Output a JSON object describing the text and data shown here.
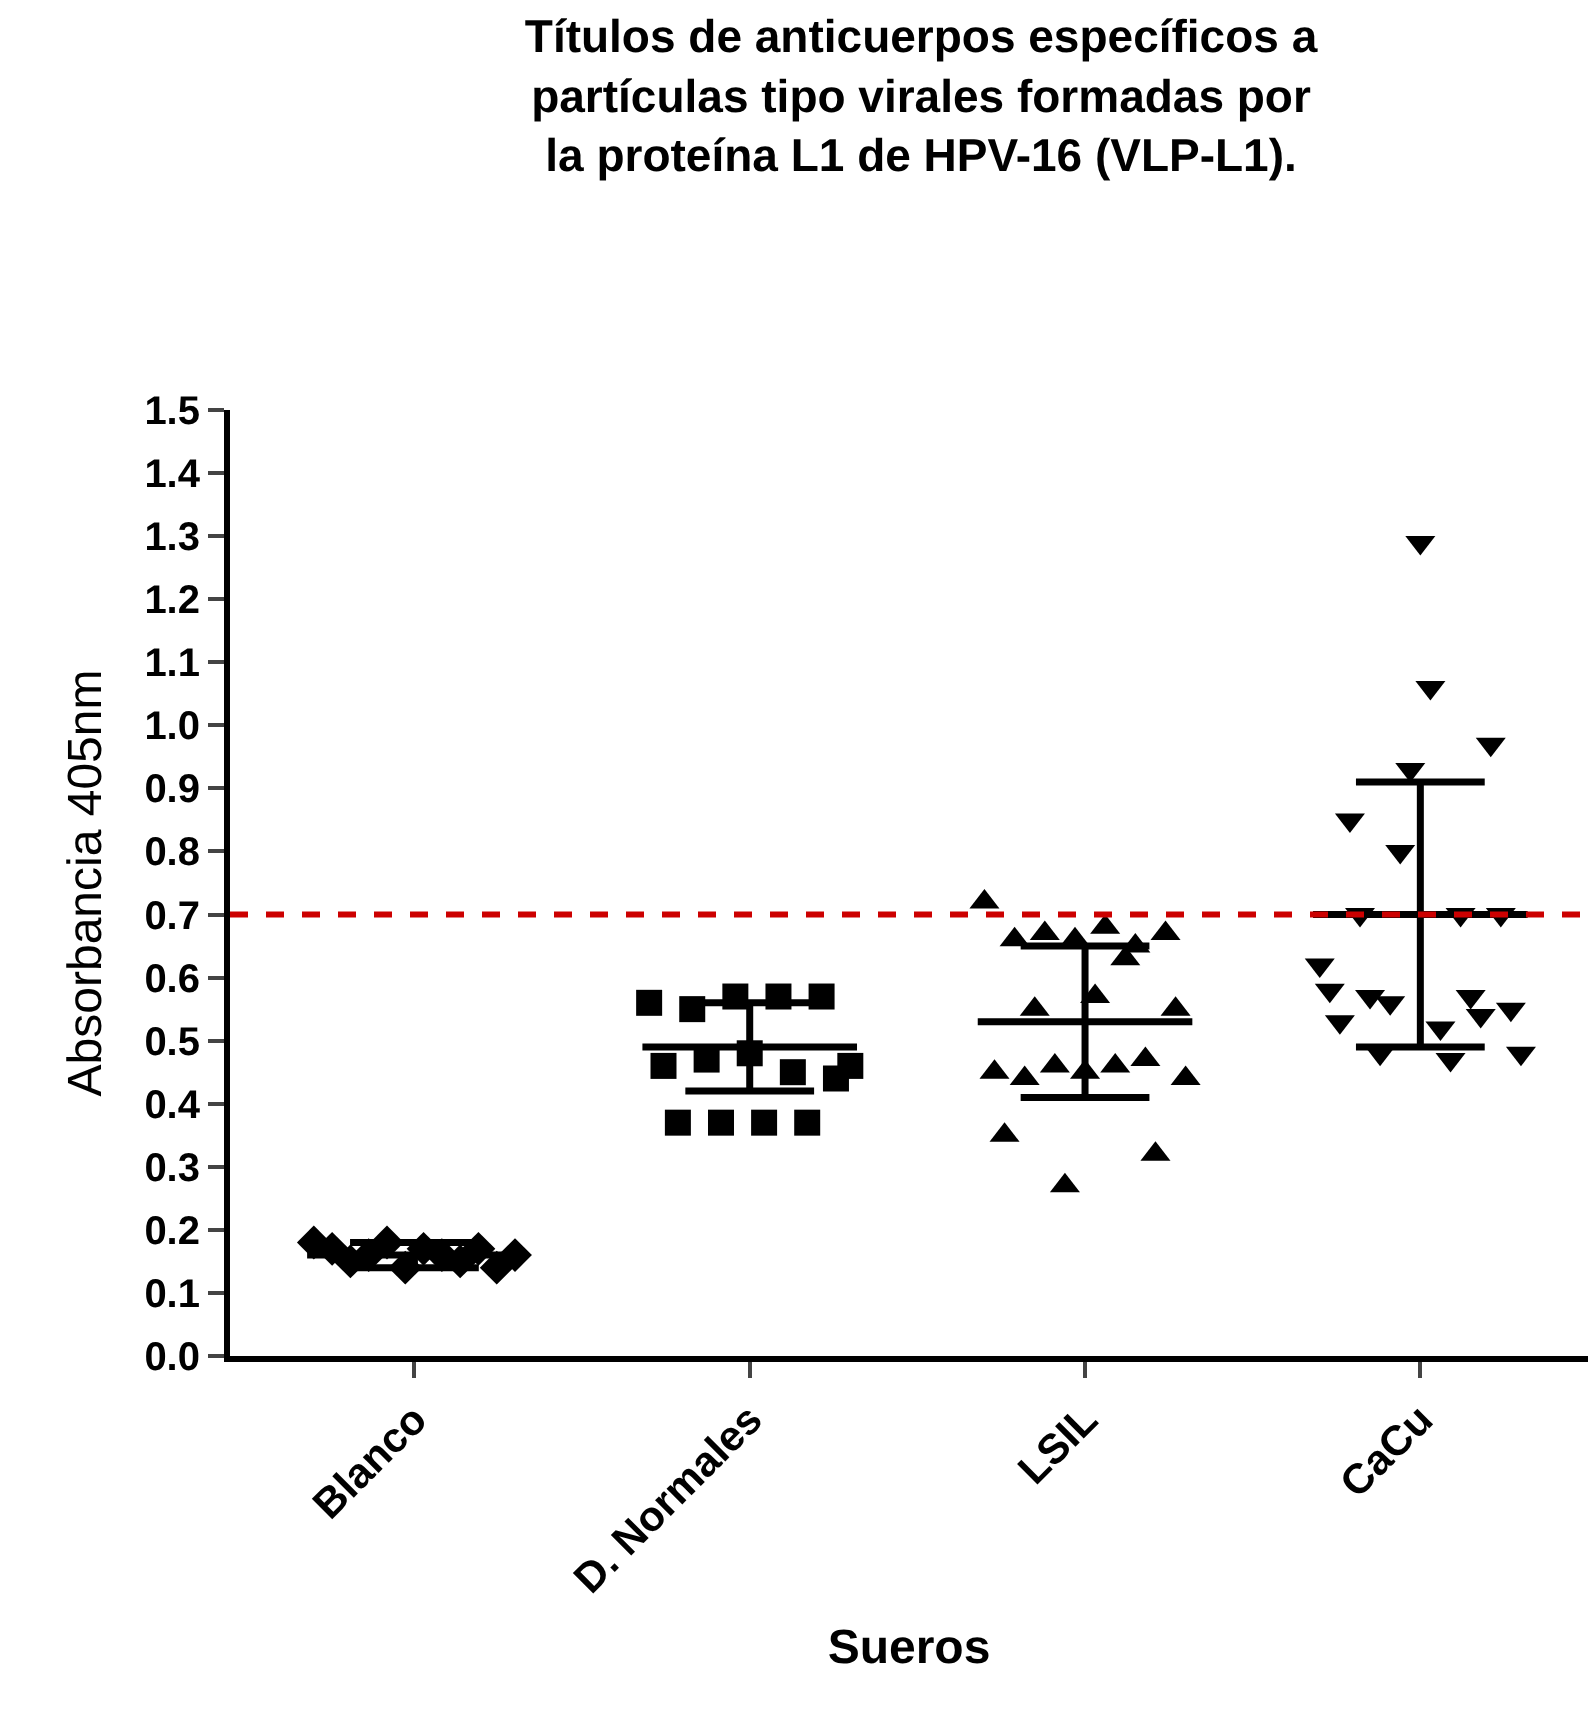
{
  "chart_data": {
    "type": "scatter",
    "title": "Títulos de anticuerpos específicos a partículas tipo virales formadas por la proteína L1 de HPV-16 (VLP-L1).",
    "xlabel": "Sueros",
    "ylabel": "Absorbancia 405nm",
    "categories": [
      "Blanco",
      "D. Normales",
      "LSIL",
      "CaCu"
    ],
    "series": [
      {
        "marker": "diamond",
        "color": "#000000",
        "x": [
          "Blanco",
          "Blanco",
          "Blanco",
          "Blanco",
          "Blanco",
          "Blanco",
          "Blanco",
          "Blanco",
          "Blanco",
          "Blanco",
          "Blanco",
          "Blanco"
        ],
        "values": [
          0.18,
          0.17,
          0.15,
          0.16,
          0.18,
          0.14,
          0.17,
          0.16,
          0.15,
          0.17,
          0.14,
          0.16
        ]
      },
      {
        "marker": "square",
        "color": "#000000",
        "x": [
          "D. Normales",
          "D. Normales",
          "D. Normales",
          "D. Normales",
          "D. Normales",
          "D. Normales",
          "D. Normales",
          "D. Normales",
          "D. Normales",
          "D. Normales",
          "D. Normales",
          "D. Normales",
          "D. Normales",
          "D. Normales",
          "D. Normales"
        ],
        "values": [
          0.56,
          0.46,
          0.37,
          0.55,
          0.47,
          0.37,
          0.57,
          0.48,
          0.37,
          0.57,
          0.45,
          0.37,
          0.57,
          0.44,
          0.46
        ]
      },
      {
        "marker": "triangle",
        "color": "#000000",
        "x": [
          "LSIL",
          "LSIL",
          "LSIL",
          "LSIL",
          "LSIL",
          "LSIL",
          "LSIL",
          "LSIL",
          "LSIL",
          "LSIL",
          "LSIL",
          "LSIL",
          "LSIL",
          "LSIL",
          "LSIL",
          "LSIL",
          "LSIL",
          "LSIL",
          "LSIL",
          "LSIL",
          "LSIL"
        ],
        "values": [
          0.72,
          0.45,
          0.35,
          0.66,
          0.44,
          0.55,
          0.67,
          0.46,
          0.27,
          0.66,
          0.45,
          0.57,
          0.68,
          0.46,
          0.63,
          0.65,
          0.47,
          0.32,
          0.67,
          0.55,
          0.44
        ]
      },
      {
        "marker": "triangle-down",
        "color": "#000000",
        "x": [
          "CaCu",
          "CaCu",
          "CaCu",
          "CaCu",
          "CaCu",
          "CaCu",
          "CaCu",
          "CaCu",
          "CaCu",
          "CaCu",
          "CaCu",
          "CaCu",
          "CaCu",
          "CaCu",
          "CaCu",
          "CaCu",
          "CaCu",
          "CaCu",
          "CaCu",
          "CaCu",
          "CaCu"
        ],
        "values": [
          0.62,
          0.58,
          0.53,
          0.85,
          0.7,
          0.57,
          0.48,
          0.56,
          0.8,
          0.93,
          1.29,
          1.06,
          0.52,
          0.47,
          0.7,
          0.57,
          0.54,
          0.97,
          0.7,
          0.55,
          0.48
        ]
      },
      {
        "type": "box",
        "color": "#000000",
        "boxes": [
          {
            "low": 0.14,
            "q1": 0.16,
            "median": 0.16,
            "q3": 0.16,
            "high": 0.18
          },
          {
            "low": 0.42,
            "q1": 0.49,
            "median": 0.49,
            "q3": 0.49,
            "high": 0.56
          },
          {
            "low": 0.41,
            "q1": 0.53,
            "median": 0.53,
            "q3": 0.53,
            "high": 0.65
          },
          {
            "low": 0.49,
            "q1": 0.7,
            "median": 0.7,
            "q3": 0.7,
            "high": 0.91
          }
        ]
      }
    ],
    "ylim": [
      0,
      1.5
    ],
    "yticks": [
      {
        "value": 0,
        "label": "0.0"
      },
      0.1,
      0.2,
      0.3,
      0.4,
      0.5,
      0.6,
      0.7,
      0.8,
      0.9,
      {
        "value": 1,
        "label": "1.0"
      },
      1.1,
      1.2,
      1.3,
      1.4,
      1.5
    ],
    "ref_lines": [
      {
        "axis": "y",
        "value": 0.7,
        "color": "#cc0000",
        "line_style": "dashed"
      }
    ]
  }
}
